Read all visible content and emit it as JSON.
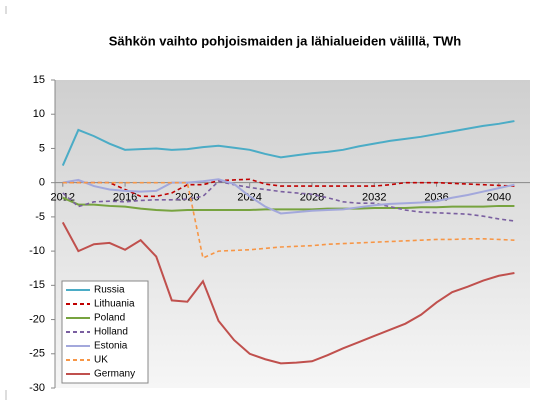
{
  "chart_data": {
    "type": "line",
    "title": "Sähkön vaihto pohjoismaiden ja lähialueiden välillä, TWh",
    "x": [
      2012,
      2013,
      2014,
      2015,
      2016,
      2017,
      2018,
      2019,
      2020,
      2021,
      2022,
      2023,
      2024,
      2025,
      2026,
      2027,
      2028,
      2029,
      2030,
      2031,
      2032,
      2033,
      2034,
      2035,
      2036,
      2037,
      2038,
      2039,
      2040,
      2041
    ],
    "series": [
      {
        "name": "Russia",
        "color": "#4bacc6",
        "dash": false,
        "values": [
          2.5,
          7.7,
          6.8,
          5.7,
          4.8,
          4.9,
          5.0,
          4.8,
          4.9,
          5.2,
          5.4,
          5.1,
          4.8,
          4.2,
          3.7,
          4.0,
          4.3,
          4.5,
          4.8,
          5.3,
          5.7,
          6.1,
          6.4,
          6.7,
          7.1,
          7.5,
          7.9,
          8.3,
          8.6,
          9.0
        ]
      },
      {
        "name": "Lithuania",
        "color": "#c00000",
        "dash": true,
        "values": [
          0,
          0,
          0,
          0,
          -1.0,
          -2.0,
          -2.0,
          -1.5,
          -0.3,
          -0.3,
          0.3,
          0.4,
          0.5,
          -0.2,
          -0.5,
          -0.5,
          -0.5,
          -0.5,
          -0.5,
          -0.5,
          -0.5,
          -0.3,
          0,
          0,
          0,
          -0.1,
          -0.2,
          -0.3,
          -0.4,
          -0.5
        ]
      },
      {
        "name": "Poland",
        "color": "#77a33f",
        "dash": false,
        "values": [
          -2.2,
          -3.2,
          -3.2,
          -3.4,
          -3.5,
          -3.8,
          -4.0,
          -4.1,
          -4.0,
          -4.0,
          -4.0,
          -4.0,
          -4.0,
          -3.9,
          -3.9,
          -3.9,
          -3.9,
          -3.8,
          -3.8,
          -3.8,
          -3.7,
          -3.7,
          -3.7,
          -3.6,
          -3.6,
          -3.5,
          -3.5,
          -3.5,
          -3.4,
          -3.4
        ]
      },
      {
        "name": "Holland",
        "color": "#7a5fa0",
        "dash": true,
        "values": [
          -1.5,
          -3.5,
          -2.8,
          -2.7,
          -2.8,
          -2.6,
          -2.5,
          -2.5,
          -2.4,
          -2.0,
          0.2,
          -0.3,
          -0.7,
          -1.0,
          -1.3,
          -1.5,
          -1.7,
          -2.2,
          -2.8,
          -3.0,
          -3.0,
          -3.5,
          -4.0,
          -4.3,
          -4.4,
          -4.5,
          -4.6,
          -4.9,
          -5.3,
          -5.6
        ]
      },
      {
        "name": "Estonia",
        "color": "#a3a8dc",
        "dash": false,
        "values": [
          0,
          0.4,
          -0.5,
          -1.0,
          -1.2,
          -1.3,
          -1.2,
          0,
          0,
          0.2,
          0.5,
          -0.2,
          -2.0,
          -3.5,
          -4.5,
          -4.3,
          -4.1,
          -4.0,
          -3.9,
          -3.6,
          -3.3,
          -3.1,
          -3.0,
          -2.9,
          -2.7,
          -2.2,
          -1.8,
          -1.3,
          -0.8,
          -0.3
        ]
      },
      {
        "name": "UK",
        "color": "#f79646",
        "dash": true,
        "values": [
          0,
          0,
          0,
          0,
          0,
          0,
          0,
          0,
          0,
          -11.0,
          -10.0,
          -9.9,
          -9.8,
          -9.6,
          -9.4,
          -9.3,
          -9.2,
          -9.0,
          -8.9,
          -8.8,
          -8.7,
          -8.6,
          -8.5,
          -8.4,
          -8.3,
          -8.3,
          -8.2,
          -8.2,
          -8.3,
          -8.4
        ]
      },
      {
        "name": "Germany",
        "color": "#c0504d",
        "dash": false,
        "values": [
          -5.8,
          -10.0,
          -9.0,
          -8.8,
          -9.8,
          -8.4,
          -10.8,
          -17.2,
          -17.4,
          -14.4,
          -20.2,
          -23.0,
          -25.0,
          -25.8,
          -26.4,
          -26.3,
          -26.1,
          -25.2,
          -24.2,
          -23.3,
          -22.4,
          -21.5,
          -20.6,
          -19.3,
          -17.5,
          -16.0,
          -15.2,
          -14.3,
          -13.6,
          -13.2
        ]
      }
    ],
    "xlim": [
      2011.5,
      2042
    ],
    "xticks": [
      2012,
      2016,
      2020,
      2024,
      2028,
      2032,
      2036,
      2040
    ],
    "ylim": [
      -30,
      15
    ],
    "yticks": [
      -30,
      -25,
      -20,
      -15,
      -10,
      -5,
      0,
      5,
      10,
      15
    ],
    "grid": false,
    "legend": "lower left"
  }
}
